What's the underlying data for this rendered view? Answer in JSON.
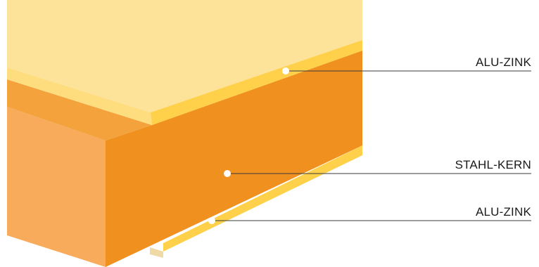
{
  "callouts": [
    {
      "id": "top",
      "label": "ALU-ZINK"
    },
    {
      "id": "core",
      "label": "STAHL-KERN"
    },
    {
      "id": "bottom",
      "label": "ALU-ZINK"
    }
  ],
  "colors": {
    "coating_top_face": "#FDE29A",
    "coating_edge": "#FFD049",
    "coating_under": "#EFD9A4",
    "steel_front": "#F0901F",
    "steel_side": "#F8AB5A",
    "steel_top_edge": "#F3A23C",
    "leader_line": "#3A3A3A"
  }
}
